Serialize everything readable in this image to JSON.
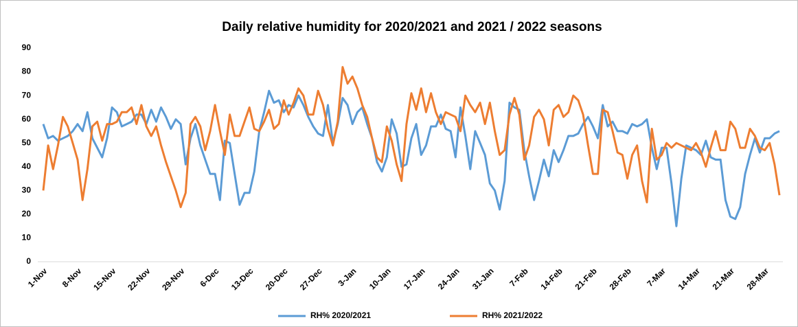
{
  "chart_data": {
    "type": "line",
    "title": "Daily relative humidity for 2020/2021 and 2021 / 2022 seasons",
    "categories": [
      "1-Nov",
      null,
      null,
      null,
      null,
      null,
      null,
      "8-Nov",
      null,
      null,
      null,
      null,
      null,
      null,
      "15-Nov",
      null,
      null,
      null,
      null,
      null,
      null,
      "22-Nov",
      null,
      null,
      null,
      null,
      null,
      null,
      "29-Nov",
      null,
      null,
      null,
      null,
      null,
      null,
      "6-Dec",
      null,
      null,
      null,
      null,
      null,
      null,
      "13-Dec",
      null,
      null,
      null,
      null,
      null,
      null,
      "20-Dec",
      null,
      null,
      null,
      null,
      null,
      null,
      "27-Dec",
      null,
      null,
      null,
      null,
      null,
      null,
      "3-Jan",
      null,
      null,
      null,
      null,
      null,
      null,
      "10-Jan",
      null,
      null,
      null,
      null,
      null,
      null,
      "17-Jan",
      null,
      null,
      null,
      null,
      null,
      null,
      "24-Jan",
      null,
      null,
      null,
      null,
      null,
      null,
      "31-Jan",
      null,
      null,
      null,
      null,
      null,
      null,
      "7-Feb",
      null,
      null,
      null,
      null,
      null,
      null,
      "14-Feb",
      null,
      null,
      null,
      null,
      null,
      null,
      "21-Feb",
      null,
      null,
      null,
      null,
      null,
      null,
      "28-Feb",
      null,
      null,
      null,
      null,
      null,
      null,
      "7-Mar",
      null,
      null,
      null,
      null,
      null,
      null,
      "14-Mar",
      null,
      null,
      null,
      null,
      null,
      null,
      "21-Mar",
      null,
      null,
      null,
      null,
      null,
      null,
      "28-Mar",
      null,
      null,
      null
    ],
    "series": [
      {
        "name": "RH% 2020/2021",
        "color": "#5b9bd5",
        "values": [
          58,
          52,
          53,
          51,
          52,
          53,
          55,
          58,
          55,
          63,
          52,
          48,
          44,
          52,
          65,
          63,
          57,
          58,
          59,
          62,
          62,
          58,
          64,
          59,
          65,
          61,
          56,
          60,
          58,
          41,
          52,
          58,
          49,
          43,
          37,
          37,
          26,
          51,
          50,
          37,
          24,
          29,
          29,
          38,
          55,
          63,
          72,
          67,
          68,
          63,
          66,
          65,
          70,
          66,
          61,
          57,
          54,
          53,
          66,
          50,
          58,
          69,
          66,
          58,
          63,
          65,
          58,
          52,
          42,
          38,
          44,
          60,
          54,
          40,
          41,
          52,
          58,
          45,
          49,
          57,
          57,
          62,
          56,
          55,
          44,
          65,
          53,
          39,
          55,
          50,
          45,
          33,
          30,
          22,
          34,
          67,
          65,
          64,
          47,
          36,
          26,
          34,
          43,
          36,
          47,
          42,
          47,
          53,
          53,
          54,
          58,
          61,
          57,
          52,
          66,
          57,
          59,
          55,
          55,
          54,
          58,
          57,
          58,
          60,
          48,
          39,
          48,
          48,
          33,
          15,
          35,
          49,
          48,
          47,
          45,
          51,
          44,
          43,
          43,
          26,
          19,
          18,
          23,
          37,
          45,
          52,
          46,
          52,
          52,
          54,
          55
        ]
      },
      {
        "name": "RH% 2021/2022",
        "color": "#ed7d31",
        "values": [
          30,
          49,
          39,
          49,
          61,
          57,
          50,
          43,
          26,
          39,
          57,
          59,
          51,
          58,
          58,
          59,
          63,
          63,
          65,
          58,
          66,
          57,
          53,
          57,
          49,
          42,
          36,
          30,
          23,
          29,
          58,
          61,
          57,
          47,
          55,
          66,
          55,
          45,
          62,
          53,
          53,
          59,
          65,
          56,
          55,
          59,
          64,
          56,
          58,
          68,
          62,
          67,
          73,
          70,
          62,
          62,
          72,
          66,
          56,
          49,
          59,
          82,
          75,
          78,
          73,
          66,
          61,
          52,
          44,
          42,
          57,
          51,
          41,
          34,
          58,
          71,
          64,
          73,
          63,
          71,
          63,
          58,
          63,
          62,
          61,
          55,
          70,
          66,
          63,
          67,
          58,
          67,
          55,
          45,
          47,
          62,
          69,
          62,
          43,
          49,
          61,
          64,
          60,
          49,
          64,
          66,
          61,
          63,
          70,
          68,
          62,
          49,
          37,
          37,
          64,
          63,
          55,
          46,
          45,
          35,
          45,
          49,
          34,
          25,
          56,
          43,
          45,
          50,
          48,
          50,
          49,
          48,
          47,
          50,
          46,
          40,
          48,
          55,
          47,
          47,
          59,
          56,
          48,
          48,
          56,
          53,
          48,
          47,
          50,
          41,
          28
        ]
      }
    ],
    "ylim": [
      0,
      90
    ],
    "yticks": [
      0,
      10,
      20,
      30,
      40,
      50,
      60,
      70,
      80,
      90
    ],
    "legend": "bottom"
  }
}
